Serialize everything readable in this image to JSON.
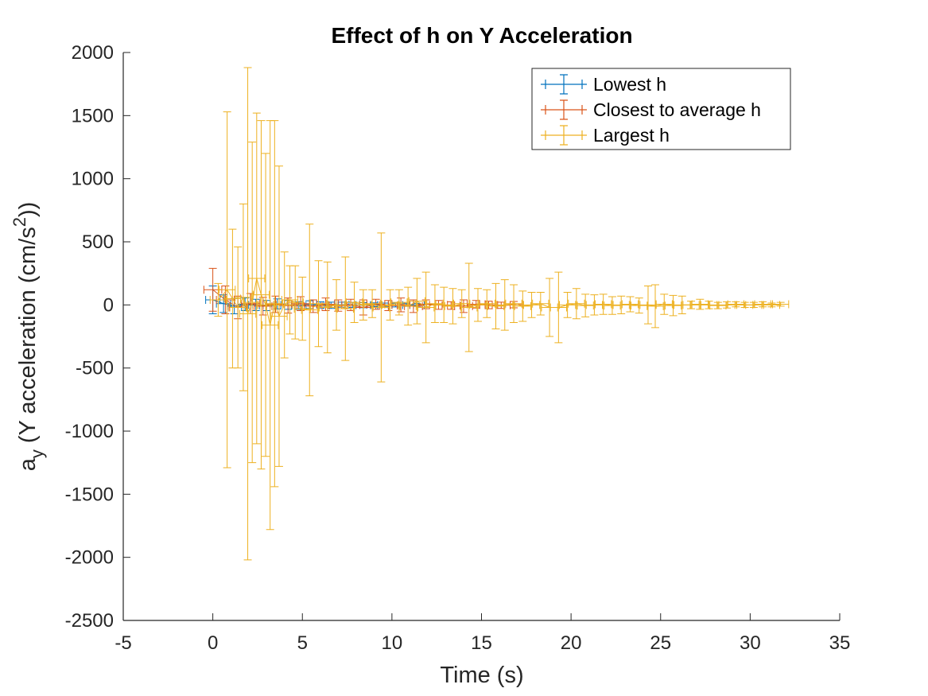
{
  "chart_data": {
    "type": "scatter",
    "title": "Effect of h on  Y Acceleration",
    "xlabel": "Time (s)",
    "ylabel": {
      "main": "a",
      "sub": "y",
      "rest_open": " (Y acceleration (cm/s",
      "sup": "2",
      "rest_close": "))"
    },
    "xlim": [
      -5,
      35
    ],
    "ylim": [
      -2500,
      2000
    ],
    "xticks": [
      "-5",
      "0",
      "5",
      "10",
      "15",
      "20",
      "25",
      "30",
      "35"
    ],
    "yticks": [
      "2000",
      "1500",
      "1000",
      "500",
      "0",
      "-500",
      "-1000",
      "-1500",
      "-2000",
      "-2500"
    ],
    "grid": false,
    "legend_position": "top-right",
    "error_bars": "vertical and horizontal",
    "series": [
      {
        "name": "Lowest h",
        "color": "#0072BD",
        "points": [
          {
            "x": 0.0,
            "y": 40,
            "err": 110,
            "xerr": 0.4
          },
          {
            "x": 0.6,
            "y": 10,
            "err": 70,
            "xerr": 0.4
          },
          {
            "x": 1.2,
            "y": -10,
            "err": 60,
            "xerr": 0.4
          },
          {
            "x": 1.8,
            "y": 5,
            "err": 50,
            "xerr": 0.4
          },
          {
            "x": 2.4,
            "y": 0,
            "err": 45,
            "xerr": 0.4
          },
          {
            "x": 3.0,
            "y": -5,
            "err": 40,
            "xerr": 0.4
          },
          {
            "x": 3.6,
            "y": 8,
            "err": 40,
            "xerr": 0.4
          },
          {
            "x": 4.2,
            "y": 0,
            "err": 35,
            "xerr": 0.4
          },
          {
            "x": 4.8,
            "y": -5,
            "err": 30,
            "xerr": 0.4
          },
          {
            "x": 5.4,
            "y": 3,
            "err": 30,
            "xerr": 0.4
          },
          {
            "x": 6.0,
            "y": 0,
            "err": 25,
            "xerr": 0.4
          },
          {
            "x": 6.6,
            "y": -3,
            "err": 25,
            "xerr": 0.4
          },
          {
            "x": 7.2,
            "y": 2,
            "err": 20,
            "xerr": 0.4
          },
          {
            "x": 7.8,
            "y": 0,
            "err": 20,
            "xerr": 0.4
          },
          {
            "x": 8.4,
            "y": -2,
            "err": 20,
            "xerr": 0.4
          },
          {
            "x": 9.0,
            "y": 1,
            "err": 15,
            "xerr": 0.4
          },
          {
            "x": 9.6,
            "y": 0,
            "err": 15,
            "xerr": 0.4
          },
          {
            "x": 10.2,
            "y": -1,
            "err": 15,
            "xerr": 0.4
          },
          {
            "x": 10.8,
            "y": 1,
            "err": 12,
            "xerr": 0.4
          },
          {
            "x": 11.4,
            "y": 0,
            "err": 12,
            "xerr": 0.4
          }
        ]
      },
      {
        "name": "Closest to average h",
        "color": "#D95319",
        "points": [
          {
            "x": 0.0,
            "y": 120,
            "err": 170,
            "xerr": 0.5
          },
          {
            "x": 0.7,
            "y": 40,
            "err": 110,
            "xerr": 0.5
          },
          {
            "x": 1.4,
            "y": -20,
            "err": 90,
            "xerr": 0.5
          },
          {
            "x": 2.1,
            "y": 10,
            "err": 80,
            "xerr": 0.5
          },
          {
            "x": 2.8,
            "y": -10,
            "err": 70,
            "xerr": 0.5
          },
          {
            "x": 3.5,
            "y": 5,
            "err": 65,
            "xerr": 0.5
          },
          {
            "x": 4.2,
            "y": -5,
            "err": 60,
            "xerr": 0.5
          },
          {
            "x": 4.9,
            "y": 10,
            "err": 55,
            "xerr": 0.5
          },
          {
            "x": 5.6,
            "y": -10,
            "err": 50,
            "xerr": 0.5
          },
          {
            "x": 6.3,
            "y": 5,
            "err": 50,
            "xerr": 0.5
          },
          {
            "x": 7.0,
            "y": -5,
            "err": 45,
            "xerr": 0.5
          },
          {
            "x": 7.7,
            "y": 0,
            "err": 45,
            "xerr": 0.5
          },
          {
            "x": 8.4,
            "y": -20,
            "err": 60,
            "xerr": 0.5
          },
          {
            "x": 9.1,
            "y": 5,
            "err": 40,
            "xerr": 0.5
          },
          {
            "x": 9.8,
            "y": -5,
            "err": 40,
            "xerr": 0.5
          },
          {
            "x": 10.5,
            "y": 0,
            "err": 55,
            "xerr": 0.5
          },
          {
            "x": 11.2,
            "y": -10,
            "err": 50,
            "xerr": 0.5
          },
          {
            "x": 11.9,
            "y": 5,
            "err": 35,
            "xerr": 0.5
          },
          {
            "x": 12.6,
            "y": 0,
            "err": 35,
            "xerr": 0.5
          },
          {
            "x": 13.3,
            "y": -5,
            "err": 30,
            "xerr": 0.5
          },
          {
            "x": 14.0,
            "y": -10,
            "err": 50,
            "xerr": 0.5
          },
          {
            "x": 14.7,
            "y": 5,
            "err": 30,
            "xerr": 0.5
          },
          {
            "x": 15.4,
            "y": 0,
            "err": 30,
            "xerr": 0.5
          },
          {
            "x": 16.1,
            "y": -3,
            "err": 25,
            "xerr": 0.5
          },
          {
            "x": 16.8,
            "y": 2,
            "err": 25,
            "xerr": 0.5
          }
        ]
      },
      {
        "name": "Largest h",
        "color": "#EDB120",
        "points": [
          {
            "x": 0.3,
            "y": 40,
            "err": 130,
            "xerr": 0.45
          },
          {
            "x": 0.8,
            "y": 120,
            "err": 1410,
            "xerr": 0.45
          },
          {
            "x": 1.1,
            "y": 50,
            "err": 550,
            "xerr": 0.45
          },
          {
            "x": 1.4,
            "y": -20,
            "err": 480,
            "xerr": 0.45
          },
          {
            "x": 1.7,
            "y": 60,
            "err": 740,
            "xerr": 0.45
          },
          {
            "x": 1.95,
            "y": -70,
            "err": 1950,
            "xerr": 0.45
          },
          {
            "x": 2.2,
            "y": 20,
            "err": 1270,
            "xerr": 0.45
          },
          {
            "x": 2.45,
            "y": 210,
            "err": 1310,
            "xerr": 0.45
          },
          {
            "x": 2.7,
            "y": 80,
            "err": 1380,
            "xerr": 0.45
          },
          {
            "x": 2.95,
            "y": 0,
            "err": 1200,
            "xerr": 0.45
          },
          {
            "x": 3.2,
            "y": -160,
            "err": 1620,
            "xerr": 0.45
          },
          {
            "x": 3.45,
            "y": 10,
            "err": 1450,
            "xerr": 0.45
          },
          {
            "x": 3.7,
            "y": -90,
            "err": 1190,
            "xerr": 0.45
          },
          {
            "x": 4.0,
            "y": 0,
            "err": 420,
            "xerr": 0.45
          },
          {
            "x": 4.3,
            "y": 40,
            "err": 270,
            "xerr": 0.45
          },
          {
            "x": 4.6,
            "y": 20,
            "err": 290,
            "xerr": 0.45
          },
          {
            "x": 5.0,
            "y": -30,
            "err": 250,
            "xerr": 0.45
          },
          {
            "x": 5.4,
            "y": -40,
            "err": 680,
            "xerr": 0.45
          },
          {
            "x": 5.9,
            "y": 10,
            "err": 340,
            "xerr": 0.45
          },
          {
            "x": 6.4,
            "y": -20,
            "err": 360,
            "xerr": 0.45
          },
          {
            "x": 6.9,
            "y": 0,
            "err": 200,
            "xerr": 0.45
          },
          {
            "x": 7.4,
            "y": -30,
            "err": 410,
            "xerr": 0.45
          },
          {
            "x": 7.9,
            "y": 20,
            "err": 160,
            "xerr": 0.45
          },
          {
            "x": 8.4,
            "y": 0,
            "err": 120,
            "xerr": 0.45
          },
          {
            "x": 8.9,
            "y": 10,
            "err": 110,
            "xerr": 0.45
          },
          {
            "x": 9.4,
            "y": -20,
            "err": 590,
            "xerr": 0.45
          },
          {
            "x": 9.9,
            "y": 0,
            "err": 120,
            "xerr": 0.45
          },
          {
            "x": 10.4,
            "y": 20,
            "err": 100,
            "xerr": 0.45
          },
          {
            "x": 10.9,
            "y": -10,
            "err": 150,
            "xerr": 0.45
          },
          {
            "x": 11.4,
            "y": 30,
            "err": 180,
            "xerr": 0.45
          },
          {
            "x": 11.9,
            "y": -20,
            "err": 280,
            "xerr": 0.45
          },
          {
            "x": 12.4,
            "y": 10,
            "err": 150,
            "xerr": 0.45
          },
          {
            "x": 12.9,
            "y": 0,
            "err": 140,
            "xerr": 0.45
          },
          {
            "x": 13.4,
            "y": -10,
            "err": 140,
            "xerr": 0.45
          },
          {
            "x": 13.9,
            "y": 10,
            "err": 110,
            "xerr": 0.45
          },
          {
            "x": 14.3,
            "y": -20,
            "err": 350,
            "xerr": 0.45
          },
          {
            "x": 14.8,
            "y": 0,
            "err": 130,
            "xerr": 0.45
          },
          {
            "x": 15.3,
            "y": 10,
            "err": 110,
            "xerr": 0.45
          },
          {
            "x": 15.8,
            "y": -10,
            "err": 180,
            "xerr": 0.45
          },
          {
            "x": 16.3,
            "y": 0,
            "err": 200,
            "xerr": 0.45
          },
          {
            "x": 16.8,
            "y": 10,
            "err": 150,
            "xerr": 0.45
          },
          {
            "x": 17.3,
            "y": -10,
            "err": 120,
            "xerr": 0.45
          },
          {
            "x": 17.8,
            "y": 0,
            "err": 100,
            "xerr": 0.45
          },
          {
            "x": 18.3,
            "y": 10,
            "err": 90,
            "xerr": 0.45
          },
          {
            "x": 18.8,
            "y": -20,
            "err": 230,
            "xerr": 0.45
          },
          {
            "x": 19.3,
            "y": -20,
            "err": 280,
            "xerr": 0.45
          },
          {
            "x": 19.8,
            "y": 0,
            "err": 100,
            "xerr": 0.45
          },
          {
            "x": 20.3,
            "y": 10,
            "err": 120,
            "xerr": 0.45
          },
          {
            "x": 20.8,
            "y": -5,
            "err": 90,
            "xerr": 0.45
          },
          {
            "x": 21.3,
            "y": 0,
            "err": 80,
            "xerr": 0.45
          },
          {
            "x": 21.8,
            "y": 5,
            "err": 80,
            "xerr": 0.45
          },
          {
            "x": 22.3,
            "y": -5,
            "err": 70,
            "xerr": 0.45
          },
          {
            "x": 22.8,
            "y": 0,
            "err": 70,
            "xerr": 0.45
          },
          {
            "x": 23.3,
            "y": 5,
            "err": 60,
            "xerr": 0.45
          },
          {
            "x": 23.8,
            "y": -5,
            "err": 60,
            "xerr": 0.45
          },
          {
            "x": 24.3,
            "y": 0,
            "err": 150,
            "xerr": 0.45
          },
          {
            "x": 24.7,
            "y": -10,
            "err": 170,
            "xerr": 0.45
          },
          {
            "x": 25.2,
            "y": 5,
            "err": 80,
            "xerr": 0.45
          },
          {
            "x": 25.7,
            "y": -5,
            "err": 80,
            "xerr": 0.45
          },
          {
            "x": 26.2,
            "y": 0,
            "err": 70,
            "xerr": 0.45
          },
          {
            "x": 26.7,
            "y": 0,
            "err": 30,
            "xerr": 0.45
          },
          {
            "x": 27.2,
            "y": 5,
            "err": 40,
            "xerr": 0.45
          },
          {
            "x": 27.7,
            "y": 0,
            "err": 30,
            "xerr": 0.45
          },
          {
            "x": 28.2,
            "y": -5,
            "err": 25,
            "xerr": 0.45
          },
          {
            "x": 28.7,
            "y": 0,
            "err": 25,
            "xerr": 0.45
          },
          {
            "x": 29.2,
            "y": 5,
            "err": 20,
            "xerr": 0.45
          },
          {
            "x": 29.7,
            "y": 0,
            "err": 20,
            "xerr": 0.45
          },
          {
            "x": 30.2,
            "y": 0,
            "err": 20,
            "xerr": 0.45
          },
          {
            "x": 30.7,
            "y": 5,
            "err": 20,
            "xerr": 0.45
          },
          {
            "x": 31.2,
            "y": 0,
            "err": 15,
            "xerr": 0.45
          },
          {
            "x": 31.7,
            "y": 5,
            "err": 15,
            "xerr": 0.45
          }
        ]
      }
    ]
  }
}
